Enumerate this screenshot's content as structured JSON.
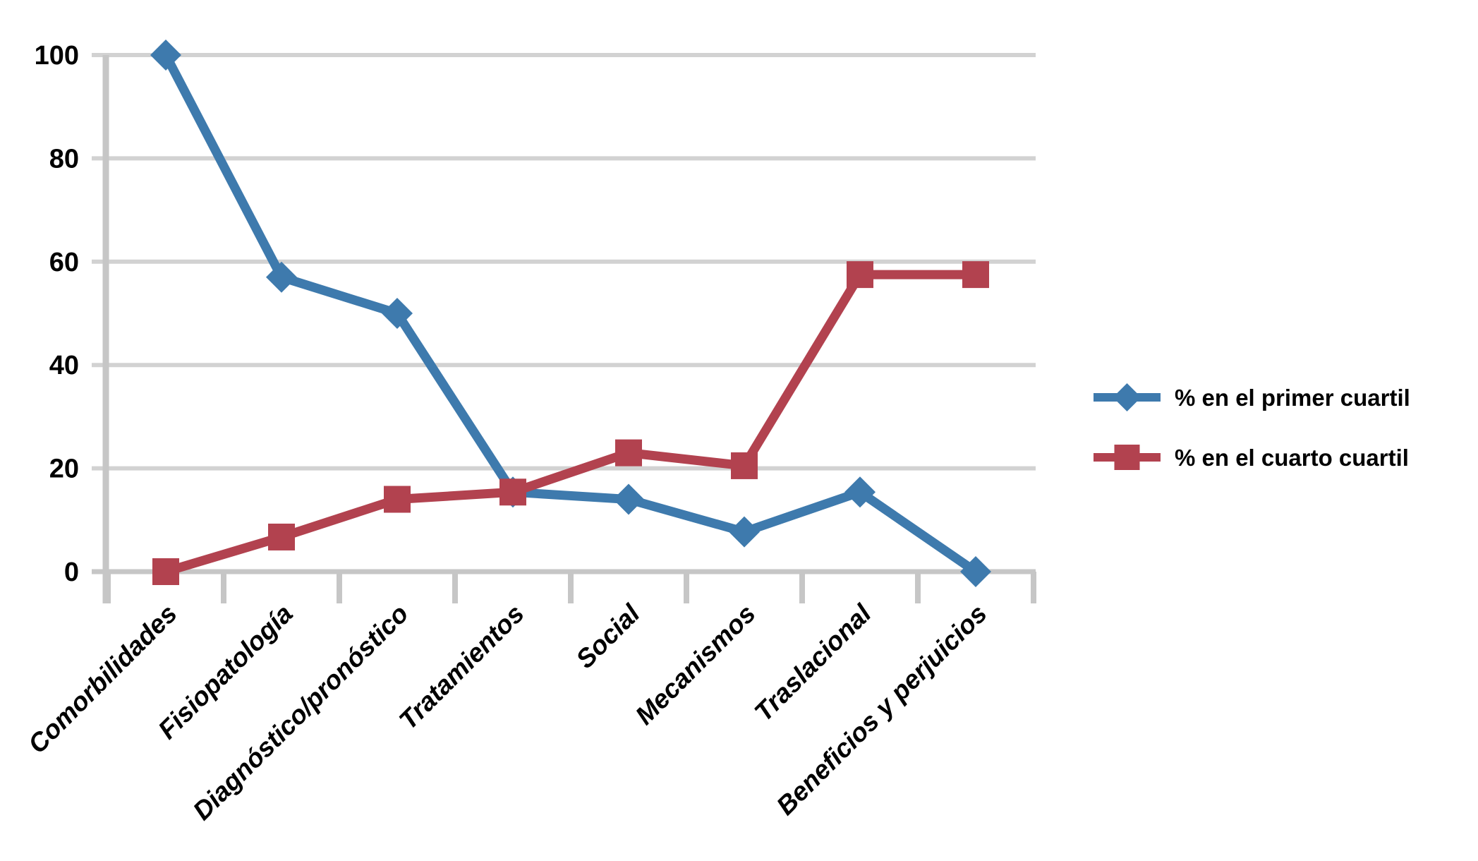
{
  "chart_data": {
    "type": "line",
    "title": "",
    "xlabel": "",
    "ylabel": "",
    "categories": [
      "Comorbilidades",
      "Fisiopatología",
      "Diagnóstico/pronóstico",
      "Tratamientos",
      "Social",
      "Mecanismos",
      "Traslacional",
      "Beneficios y perjuicios"
    ],
    "series": [
      {
        "name": "% en el primer cuartil",
        "marker": "diamond",
        "color": "#3E7AAD",
        "values": [
          100,
          57,
          50,
          15.4,
          14,
          7.7,
          15.4,
          0
        ]
      },
      {
        "name": "% en el cuarto cuartil",
        "marker": "square",
        "color": "#B2424F",
        "values": [
          0,
          6.7,
          14,
          15.4,
          23,
          20.5,
          57.5,
          57.5
        ]
      }
    ],
    "ylim": [
      0,
      100
    ],
    "yticks": [
      0,
      20,
      40,
      60,
      80,
      100
    ],
    "grid": "horizontal",
    "gridline_color": "#D2D2D2",
    "axis_color": "#C6C6C6",
    "legend_position": "right",
    "background_color": "#FFFFFF"
  }
}
